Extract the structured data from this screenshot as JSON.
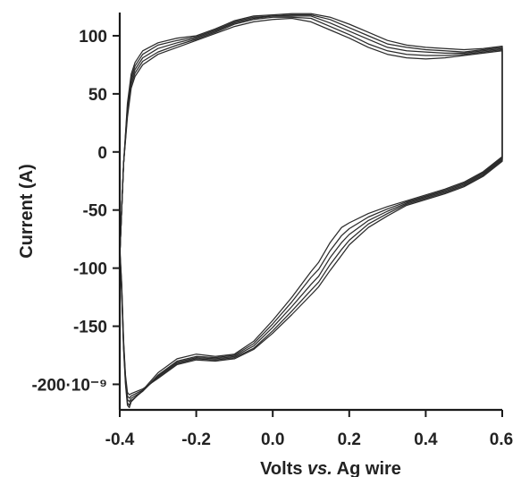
{
  "chart_data": {
    "type": "line",
    "title": "",
    "xlabel_parts": [
      "Volts ",
      "vs.",
      " Ag wire"
    ],
    "ylabel": "Current (A)",
    "x_ticks": [
      "-0.4",
      "-0.2",
      "0.0",
      "0.2",
      "0.4",
      "0.6"
    ],
    "x_tick_values": [
      -0.4,
      -0.2,
      0.0,
      0.2,
      0.4,
      0.6
    ],
    "y_ticks": [
      "100",
      "50",
      "0",
      "-50",
      "-100",
      "-150",
      "-200·10⁻⁹"
    ],
    "y_tick_values": [
      1e-07,
      5e-08,
      0,
      -5e-08,
      -1e-07,
      -1.5e-07,
      -2e-07
    ],
    "xlim": [
      -0.4,
      0.6
    ],
    "ylim": [
      -2.22e-07,
      1.2e-07
    ],
    "grid": false,
    "series": [
      {
        "x": [
          -0.4,
          -0.39,
          -0.38,
          -0.37,
          -0.36,
          -0.34,
          -0.3,
          -0.25,
          -0.2,
          -0.15,
          -0.1,
          -0.05,
          0.0,
          0.05,
          0.1,
          0.15,
          0.2,
          0.25,
          0.3,
          0.35,
          0.4,
          0.45,
          0.5,
          0.55,
          0.6,
          0.6,
          0.55,
          0.5,
          0.45,
          0.4,
          0.35,
          0.3,
          0.25,
          0.2,
          0.18,
          0.15,
          0.12,
          0.1,
          0.05,
          0.0,
          -0.05,
          -0.1,
          -0.15,
          -0.2,
          -0.25,
          -0.3,
          -0.34,
          -0.37,
          -0.375,
          -0.38,
          -0.385,
          -0.39,
          -0.395,
          -0.4
        ],
        "y": [
          -9e-08,
          -1e-08,
          3e-08,
          5.5e-08,
          6.5e-08,
          7.5e-08,
          8.4e-08,
          9e-08,
          9.6e-08,
          1.02e-07,
          1.08e-07,
          1.12e-07,
          1.14e-07,
          1.15e-07,
          1.12e-07,
          1.05e-07,
          9.8e-08,
          9e-08,
          8.4e-08,
          8.1e-08,
          8e-08,
          8.1e-08,
          8.3e-08,
          8.5e-08,
          8.7e-08,
          -4e-09,
          -1.7e-08,
          -2.6e-08,
          -3.2e-08,
          -3.7e-08,
          -4.2e-08,
          -4.7e-08,
          -5.3e-08,
          -6.1e-08,
          -6.5e-08,
          -7.8e-08,
          -9.5e-08,
          -1.03e-07,
          -1.25e-07,
          -1.45e-07,
          -1.63e-07,
          -1.74e-07,
          -1.76e-07,
          -1.74e-07,
          -1.78e-07,
          -1.9e-07,
          -2.05e-07,
          -2.15e-07,
          -2.2e-07,
          -2.18e-07,
          -2e-07,
          -1.7e-07,
          -1.2e-07,
          -9e-08
        ]
      },
      {
        "x": [
          -0.4,
          -0.39,
          -0.38,
          -0.37,
          -0.36,
          -0.34,
          -0.3,
          -0.25,
          -0.2,
          -0.15,
          -0.1,
          -0.05,
          0.0,
          0.05,
          0.1,
          0.15,
          0.2,
          0.25,
          0.3,
          0.35,
          0.4,
          0.45,
          0.5,
          0.55,
          0.6,
          0.6,
          0.55,
          0.5,
          0.45,
          0.4,
          0.35,
          0.3,
          0.25,
          0.2,
          0.18,
          0.15,
          0.12,
          0.1,
          0.05,
          0.0,
          -0.05,
          -0.1,
          -0.15,
          -0.2,
          -0.25,
          -0.3,
          -0.34,
          -0.37,
          -0.375,
          -0.38,
          -0.385,
          -0.39,
          -0.395,
          -0.4
        ],
        "y": [
          -9e-08,
          -1e-08,
          3.3e-08,
          5.8e-08,
          6.8e-08,
          7.8e-08,
          8.6e-08,
          9.2e-08,
          9.7e-08,
          1.03e-07,
          1.1e-07,
          1.14e-07,
          1.16e-07,
          1.16e-07,
          1.15e-07,
          1.08e-07,
          1.01e-07,
          9.3e-08,
          8.7e-08,
          8.4e-08,
          8.3e-08,
          8.3e-08,
          8.4e-08,
          8.6e-08,
          8.8e-08,
          -5e-09,
          -1.8e-08,
          -2.7e-08,
          -3.3e-08,
          -3.8e-08,
          -4.3e-08,
          -4.9e-08,
          -5.6e-08,
          -6.6e-08,
          -7.2e-08,
          -8.5e-08,
          -1.01e-07,
          -1.08e-07,
          -1.29e-07,
          -1.48e-07,
          -1.65e-07,
          -1.75e-07,
          -1.77e-07,
          -1.76e-07,
          -1.8e-07,
          -1.92e-07,
          -2.06e-07,
          -2.14e-07,
          -2.18e-07,
          -2.16e-07,
          -1.98e-07,
          -1.68e-07,
          -1.18e-07,
          -8.8e-08
        ]
      },
      {
        "x": [
          -0.4,
          -0.39,
          -0.38,
          -0.37,
          -0.36,
          -0.34,
          -0.3,
          -0.25,
          -0.2,
          -0.15,
          -0.1,
          -0.05,
          0.0,
          0.05,
          0.1,
          0.15,
          0.2,
          0.25,
          0.3,
          0.35,
          0.4,
          0.45,
          0.5,
          0.55,
          0.6,
          0.6,
          0.55,
          0.5,
          0.45,
          0.4,
          0.35,
          0.3,
          0.25,
          0.2,
          0.18,
          0.15,
          0.12,
          0.1,
          0.05,
          0.0,
          -0.05,
          -0.1,
          -0.15,
          -0.2,
          -0.25,
          -0.3,
          -0.34,
          -0.37,
          -0.375,
          -0.38,
          -0.385,
          -0.39,
          -0.395,
          -0.4
        ],
        "y": [
          -9e-08,
          -1e-08,
          3.6e-08,
          6.1e-08,
          7.1e-08,
          8.1e-08,
          8.9e-08,
          9.4e-08,
          9.8e-08,
          1.04e-07,
          1.11e-07,
          1.15e-07,
          1.17e-07,
          1.17e-07,
          1.17e-07,
          1.11e-07,
          1.04e-07,
          9.7e-08,
          9e-08,
          8.7e-08,
          8.6e-08,
          8.5e-08,
          8.5e-08,
          8.7e-08,
          8.9e-08,
          -6e-09,
          -1.9e-08,
          -2.8e-08,
          -3.4e-08,
          -3.9e-08,
          -4.4e-08,
          -5.1e-08,
          -5.9e-08,
          -7.1e-08,
          -7.8e-08,
          -9.1e-08,
          -1.07e-07,
          -1.14e-07,
          -1.33e-07,
          -1.51e-07,
          -1.67e-07,
          -1.76e-07,
          -1.78e-07,
          -1.77e-07,
          -1.81e-07,
          -1.93e-07,
          -2.06e-07,
          -2.12e-07,
          -2.15e-07,
          -2.13e-07,
          -1.96e-07,
          -1.66e-07,
          -1.16e-07,
          -8.6e-08
        ]
      },
      {
        "x": [
          -0.4,
          -0.39,
          -0.38,
          -0.37,
          -0.36,
          -0.34,
          -0.3,
          -0.25,
          -0.2,
          -0.15,
          -0.1,
          -0.05,
          0.0,
          0.05,
          0.1,
          0.15,
          0.2,
          0.25,
          0.3,
          0.35,
          0.4,
          0.45,
          0.5,
          0.55,
          0.6,
          0.6,
          0.55,
          0.5,
          0.45,
          0.4,
          0.35,
          0.3,
          0.25,
          0.2,
          0.18,
          0.15,
          0.12,
          0.1,
          0.05,
          0.0,
          -0.05,
          -0.1,
          -0.15,
          -0.2,
          -0.25,
          -0.3,
          -0.34,
          -0.37,
          -0.375,
          -0.38,
          -0.385,
          -0.39,
          -0.395,
          -0.4
        ],
        "y": [
          -9e-08,
          -1e-08,
          3.9e-08,
          6.4e-08,
          7.4e-08,
          8.4e-08,
          9.2e-08,
          9.6e-08,
          9.9e-08,
          1.05e-07,
          1.12e-07,
          1.16e-07,
          1.17e-07,
          1.18e-07,
          1.18e-07,
          1.14e-07,
          1.07e-07,
          1e-07,
          9.3e-08,
          9e-08,
          8.8e-08,
          8.7e-08,
          8.6e-08,
          8.8e-08,
          9e-08,
          -7e-09,
          -2e-08,
          -2.9e-08,
          -3.5e-08,
          -4e-08,
          -4.5e-08,
          -5.3e-08,
          -6.2e-08,
          -7.6e-08,
          -8.4e-08,
          -9.7e-08,
          -1.12e-07,
          -1.19e-07,
          -1.37e-07,
          -1.54e-07,
          -1.69e-07,
          -1.77e-07,
          -1.79e-07,
          -1.78e-07,
          -1.82e-07,
          -1.94e-07,
          -2.05e-07,
          -2.1e-07,
          -2.12e-07,
          -2.1e-07,
          -1.94e-07,
          -1.64e-07,
          -1.14e-07,
          -8.4e-08
        ]
      },
      {
        "x": [
          -0.4,
          -0.39,
          -0.38,
          -0.37,
          -0.36,
          -0.34,
          -0.3,
          -0.25,
          -0.2,
          -0.15,
          -0.1,
          -0.05,
          0.0,
          0.05,
          0.1,
          0.15,
          0.2,
          0.25,
          0.3,
          0.35,
          0.4,
          0.45,
          0.5,
          0.55,
          0.6,
          0.6,
          0.55,
          0.5,
          0.45,
          0.4,
          0.35,
          0.3,
          0.25,
          0.2,
          0.18,
          0.15,
          0.12,
          0.1,
          0.05,
          0.0,
          -0.05,
          -0.1,
          -0.15,
          -0.2,
          -0.25,
          -0.3,
          -0.34,
          -0.37,
          -0.375,
          -0.38,
          -0.385,
          -0.39,
          -0.395,
          -0.4
        ],
        "y": [
          -9e-08,
          -1e-08,
          4.2e-08,
          6.7e-08,
          7.7e-08,
          8.7e-08,
          9.4e-08,
          9.8e-08,
          1e-07,
          1.06e-07,
          1.13e-07,
          1.17e-07,
          1.18e-07,
          1.19e-07,
          1.19e-07,
          1.16e-07,
          1.1e-07,
          1.03e-07,
          9.6e-08,
          9.2e-08,
          9e-08,
          8.9e-08,
          8.8e-08,
          8.9e-08,
          9.1e-08,
          -8e-09,
          -2.1e-08,
          -3e-08,
          -3.6e-08,
          -4.1e-08,
          -4.6e-08,
          -5.5e-08,
          -6.5e-08,
          -8e-08,
          -8.9e-08,
          -1.02e-07,
          -1.16e-07,
          -1.23e-07,
          -1.4e-07,
          -1.56e-07,
          -1.7e-07,
          -1.78e-07,
          -1.8e-07,
          -1.79e-07,
          -1.83e-07,
          -1.95e-07,
          -2.04e-07,
          -2.08e-07,
          -2.09e-07,
          -2.07e-07,
          -1.92e-07,
          -1.62e-07,
          -1.12e-07,
          -8.2e-08
        ]
      }
    ]
  }
}
